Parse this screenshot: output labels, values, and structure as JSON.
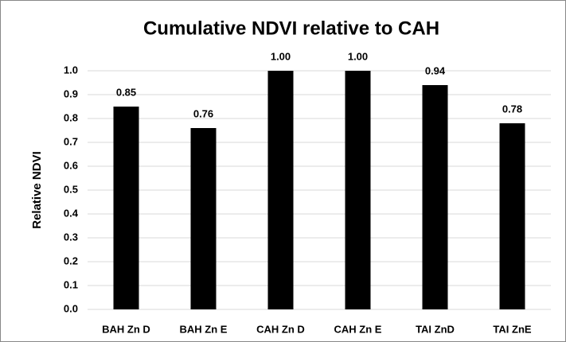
{
  "chart_data": {
    "type": "bar",
    "title": "Cumulative NDVI relative to CAH",
    "y_label": "Relative NDVI",
    "categories": [
      "BAH Zn D",
      "BAH Zn E",
      "CAH Zn D",
      "CAH Zn E",
      "TAI ZnD",
      "TAI ZnE"
    ],
    "values": [
      0.85,
      0.76,
      1.0,
      1.0,
      0.94,
      0.78
    ],
    "value_labels": [
      "0.85",
      "0.76",
      "1.00",
      "1.00",
      "0.94",
      "0.78"
    ],
    "color": "#000000",
    "ylim": [
      0,
      1.0
    ],
    "yticks": [
      {
        "value": 0,
        "label": "0.0"
      },
      0.1,
      0.2,
      0.3,
      0.4,
      0.5,
      0.6,
      0.7,
      0.8,
      0.9,
      {
        "value": 1.0,
        "label": "1.0"
      }
    ],
    "grid": true
  }
}
